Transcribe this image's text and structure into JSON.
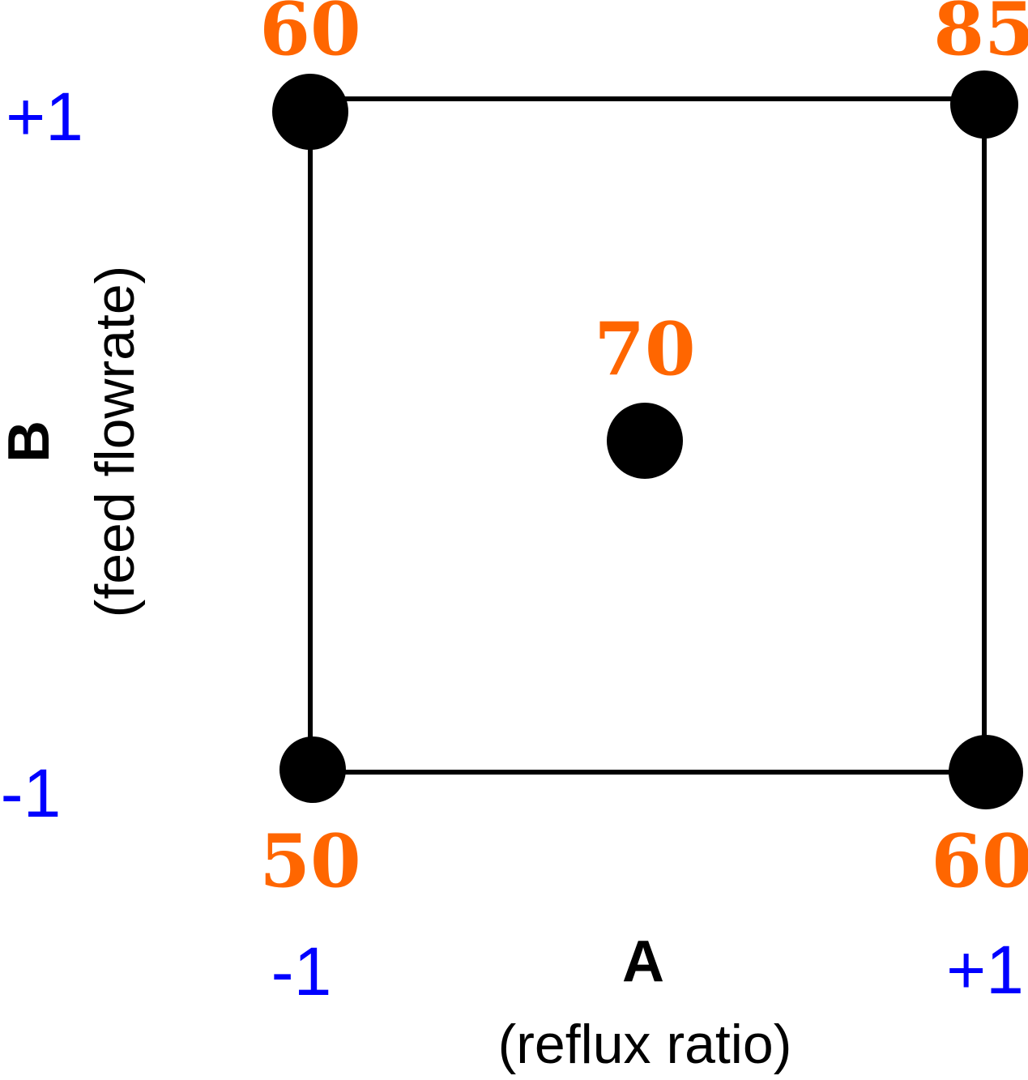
{
  "colors": {
    "response": "#ff6600",
    "level": "#0000ff",
    "line": "#000000"
  },
  "factor_a": {
    "name": "A",
    "description": "(reflux ratio)",
    "low_label": "-1",
    "high_label": "+1"
  },
  "factor_b": {
    "name": "B",
    "description": "(feed flowrate)",
    "low_label": "-1",
    "high_label": "+1"
  },
  "design_points": [
    {
      "id": "low-a-high-b",
      "a": -1,
      "b": 1,
      "response": "60"
    },
    {
      "id": "high-a-high-b",
      "a": 1,
      "b": 1,
      "response": "85"
    },
    {
      "id": "low-a-low-b",
      "a": -1,
      "b": -1,
      "response": "50"
    },
    {
      "id": "high-a-low-b",
      "a": 1,
      "b": -1,
      "response": "60"
    },
    {
      "id": "center",
      "a": 0,
      "b": 0,
      "response": "70"
    }
  ]
}
